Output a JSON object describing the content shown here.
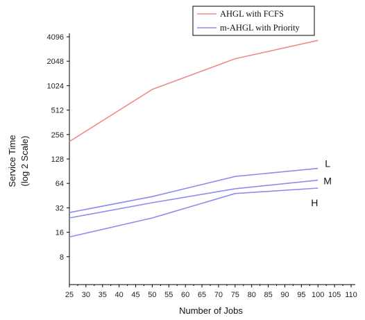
{
  "chart_data": {
    "type": "line",
    "xlabel": "Number of Jobs",
    "ylabel": "Service Time",
    "ylabel_sub": "(log 2 Scale)",
    "x_ticks": [
      25,
      30,
      35,
      40,
      45,
      50,
      55,
      60,
      65,
      70,
      75,
      80,
      85,
      90,
      95,
      100,
      105,
      110
    ],
    "xlim": [
      25,
      110
    ],
    "y_scale": "log2",
    "y_ticks": [
      8,
      16,
      32,
      64,
      128,
      256,
      512,
      1024,
      2048,
      4096
    ],
    "ylim": [
      4,
      4096
    ],
    "legend_position": "top-right",
    "legend": [
      {
        "label": "AHGL with FCFS",
        "color": "#f08a8a"
      },
      {
        "label": "m-AHGL with Priority",
        "color": "#8c8cf0"
      }
    ],
    "series": [
      {
        "name": "AHGL with FCFS",
        "color": "#f08a8a",
        "x": [
          25,
          50,
          75,
          100
        ],
        "y": [
          210,
          920,
          2200,
          3700
        ]
      },
      {
        "name": "L",
        "label": "L",
        "color": "#8c8cf0",
        "x": [
          25,
          50,
          75,
          100
        ],
        "y": [
          28,
          44,
          78,
          98
        ]
      },
      {
        "name": "M",
        "label": "M",
        "color": "#8c8cf0",
        "x": [
          25,
          50,
          75,
          100
        ],
        "y": [
          24,
          37,
          55,
          70
        ]
      },
      {
        "name": "H",
        "label": "H",
        "color": "#8c8cf0",
        "x": [
          25,
          50,
          75,
          100
        ],
        "y": [
          14,
          24,
          48,
          56
        ]
      }
    ]
  }
}
